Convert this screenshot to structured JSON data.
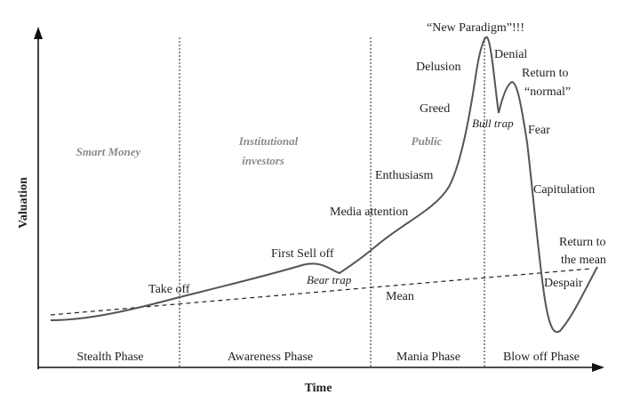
{
  "axes": {
    "y_label": "Valuation",
    "x_label": "Time"
  },
  "phases": [
    "Stealth Phase",
    "Awareness Phase",
    "Mania Phase",
    "Blow off Phase"
  ],
  "groups": {
    "smart_money": "Smart Money",
    "institutional_line1": "Institutional",
    "institutional_line2": "investors",
    "public": "Public"
  },
  "annotations": {
    "take_off": "Take off",
    "first_sell_off": "First Sell off",
    "bear_trap": "Bear trap",
    "mean": "Mean",
    "media_attention": "Media attention",
    "enthusiasm": "Enthusiasm",
    "greed": "Greed",
    "delusion": "Delusion",
    "new_paradigm": "“New Paradigm”!!!",
    "bull_trap": "Bull trap",
    "denial": "Denial",
    "return_to_normal_line1": "Return to",
    "return_to_normal_line2": "“normal”",
    "fear": "Fear",
    "capitulation": "Capitulation",
    "despair": "Despair",
    "return_to_mean_line1": "Return to",
    "return_to_mean_line2": "the mean"
  }
}
